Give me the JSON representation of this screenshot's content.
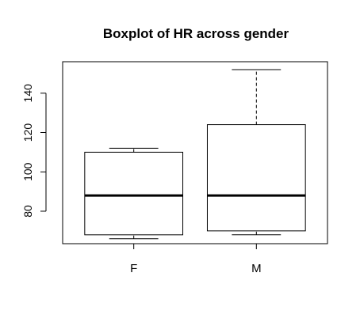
{
  "chart_data": {
    "type": "boxplot",
    "title": "Boxplot of HR across gender",
    "xlabel": "",
    "ylabel": "",
    "categories": [
      "F",
      "M"
    ],
    "boxes": [
      {
        "category": "F",
        "whisker_low": 66,
        "q1": 68,
        "median": 88,
        "q3": 110,
        "whisker_high": 112
      },
      {
        "category": "M",
        "whisker_low": 68,
        "q1": 70,
        "median": 88,
        "q3": 124,
        "whisker_high": 152
      }
    ],
    "ylim": [
      63.5,
      156
    ],
    "yticks": [
      80,
      100,
      120,
      140
    ],
    "ytick_labels": [
      "80",
      "100",
      "120",
      "140"
    ],
    "grid": false,
    "colors": {
      "box_fill": "#ffffff",
      "stroke": "#000000",
      "background": "#ffffff"
    }
  }
}
